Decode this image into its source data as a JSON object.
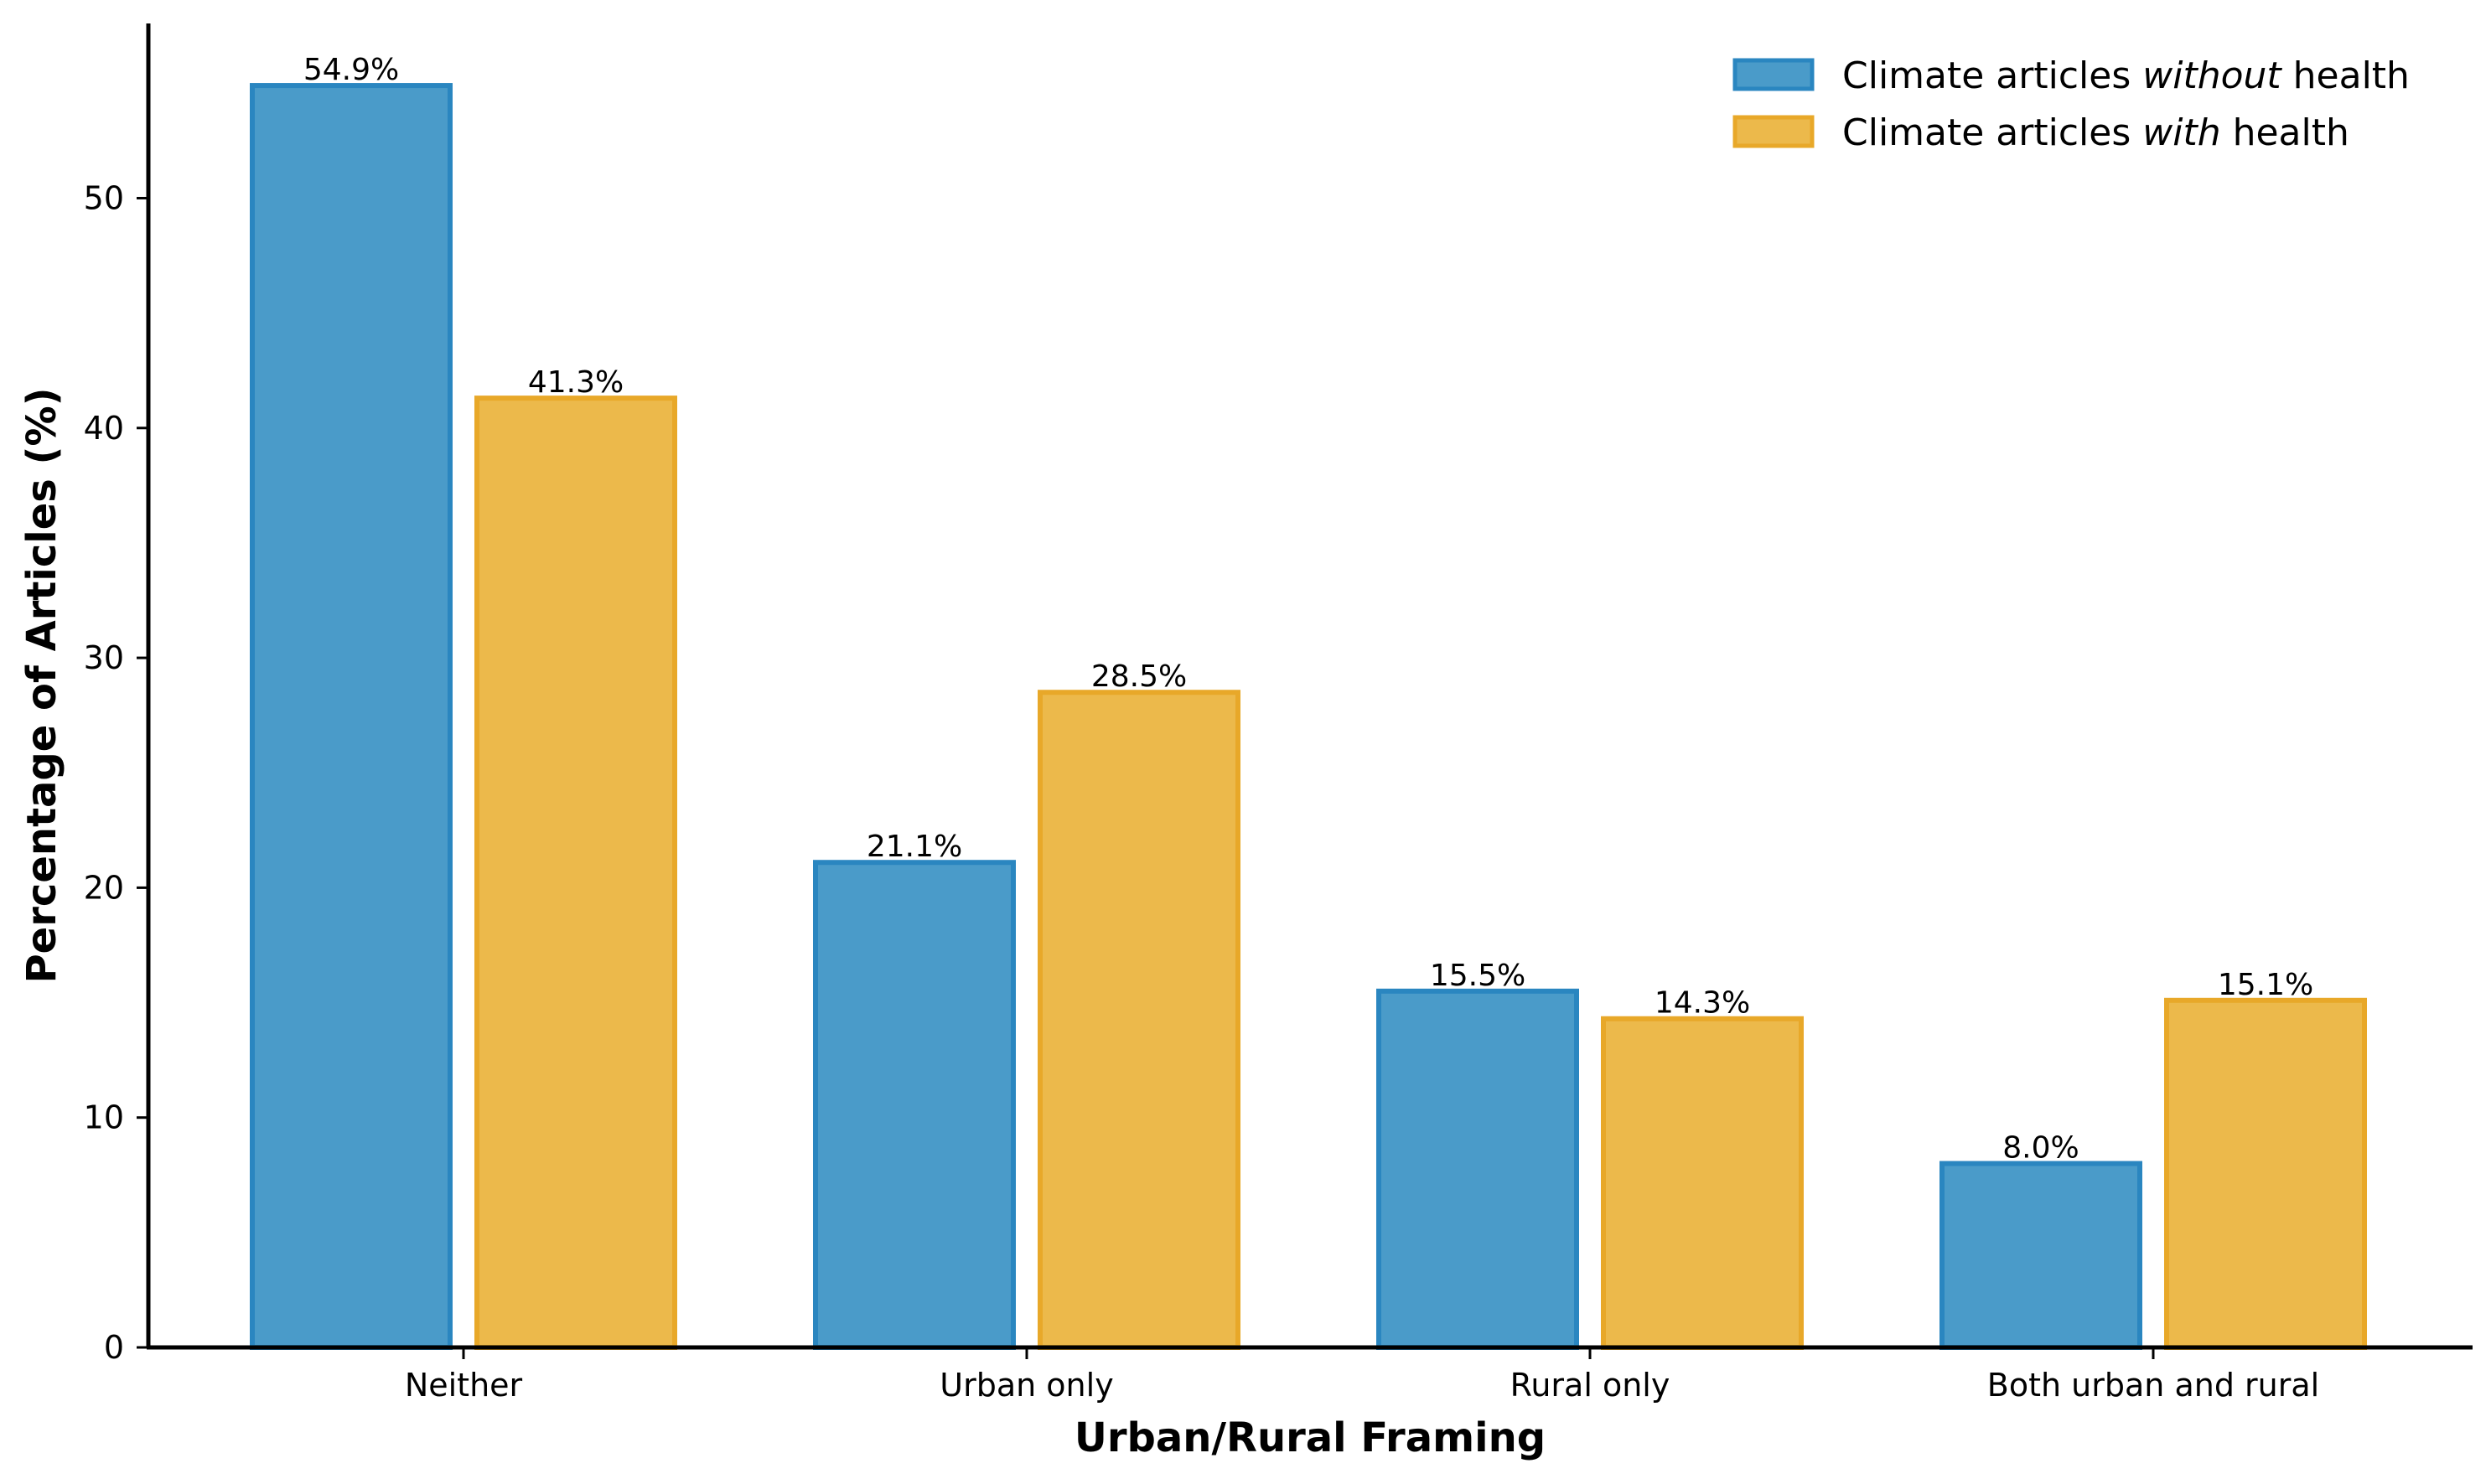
{
  "chart_data": {
    "type": "bar",
    "title": "",
    "xlabel": "Urban/Rural Framing",
    "ylabel": "Percentage of Articles (%)",
    "categories": [
      "Neither",
      "Urban only",
      "Rural only",
      "Both urban and rural"
    ],
    "series": [
      {
        "name": "Climate articles without health",
        "legend_parts": [
          "Climate articles ",
          "without",
          " health"
        ],
        "color": "#4A9BC9",
        "edge_color": "#2A86C0",
        "values": [
          54.9,
          21.1,
          15.5,
          8.0
        ],
        "labels": [
          "54.9%",
          "21.1%",
          "15.5%",
          "8.0%"
        ]
      },
      {
        "name": "Climate articles with health",
        "legend_parts": [
          "Climate articles ",
          "with",
          " health"
        ],
        "color": "#ECB94B",
        "edge_color": "#E8A829",
        "values": [
          41.3,
          28.5,
          14.3,
          15.1
        ],
        "labels": [
          "41.3%",
          "28.5%",
          "14.3%",
          "15.1%"
        ]
      }
    ],
    "ylim": [
      0,
      57.6
    ],
    "yticks": [
      "0",
      "10",
      "20",
      "30",
      "40",
      "50"
    ],
    "grid": false,
    "legend_position": "top-right"
  }
}
